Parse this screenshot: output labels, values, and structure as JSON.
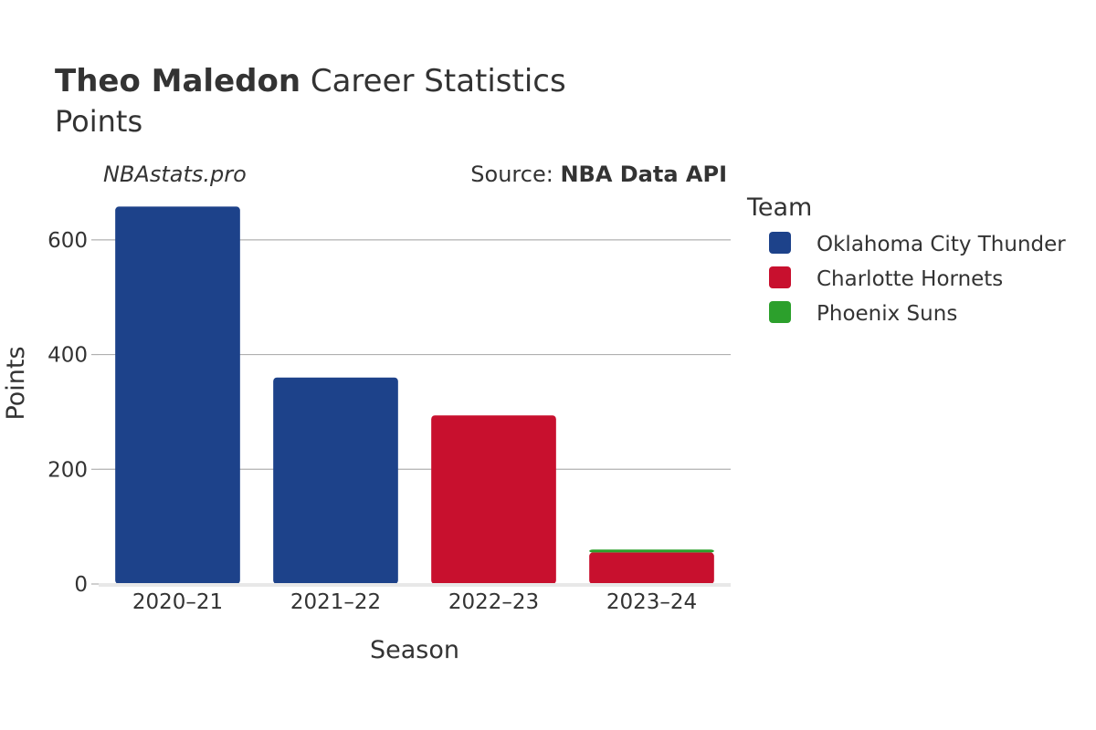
{
  "header": {
    "title_bold": "Theo Maledon",
    "title_rest": " Career Statistics",
    "subtitle": "Points"
  },
  "watermark": "NBAstats.pro",
  "source": {
    "label": "Source: ",
    "value": "NBA Data API"
  },
  "legend": {
    "title": "Team"
  },
  "colors": {
    "Oklahoma City Thunder": "#1d428a",
    "Charlotte Hornets": "#c8102e",
    "Phoenix Suns": "#2ca02c",
    "grid": "#b0b0b0",
    "baseline": "#e8e8e8",
    "text": "#333333"
  },
  "chart_data": {
    "type": "bar",
    "stacked": true,
    "xlabel": "Season",
    "ylabel": "Points",
    "categories": [
      "2020–21",
      "2021–22",
      "2022–23",
      "2023–24"
    ],
    "ylim": [
      0,
      700
    ],
    "yticks": [
      0,
      200,
      400,
      600
    ],
    "grid": true,
    "legend_position": "right",
    "series": [
      {
        "name": "Oklahoma City Thunder",
        "values": [
          658,
          360,
          0,
          0
        ]
      },
      {
        "name": "Charlotte Hornets",
        "values": [
          0,
          0,
          294,
          55
        ]
      },
      {
        "name": "Phoenix Suns",
        "values": [
          0,
          0,
          0,
          5
        ]
      }
    ]
  }
}
